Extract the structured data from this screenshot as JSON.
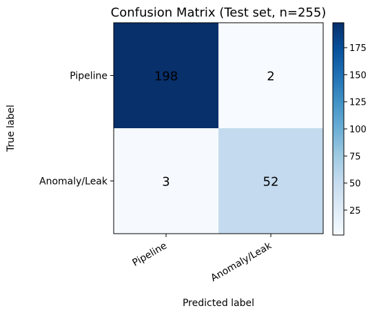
{
  "chart_data": {
    "type": "heatmap",
    "title": "Confusion Matrix (Test set, n=255)",
    "xlabel": "Predicted label",
    "ylabel": "True label",
    "x_categories": [
      "Pipeline",
      "Anomaly/Leak"
    ],
    "y_categories": [
      "Pipeline",
      "Anomaly/Leak"
    ],
    "matrix": [
      [
        198,
        2
      ],
      [
        3,
        52
      ]
    ],
    "colormap": "Blues",
    "color_range": [
      2,
      198
    ],
    "colorbar_ticks": [
      25,
      50,
      75,
      100,
      125,
      150,
      175
    ]
  }
}
